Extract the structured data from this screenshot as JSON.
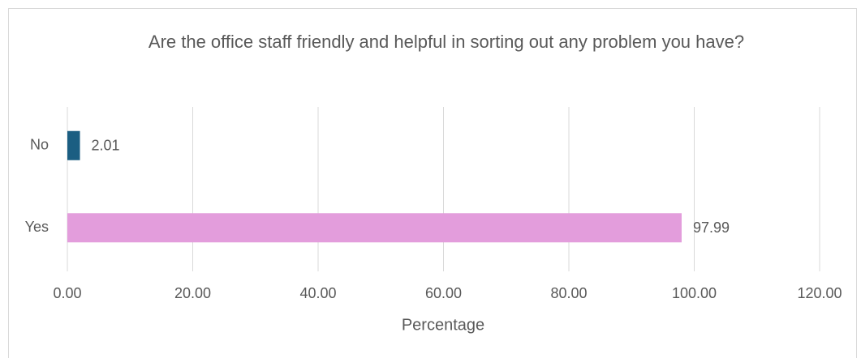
{
  "chart_data": {
    "type": "bar",
    "orientation": "horizontal",
    "title": "Are the office staff friendly and helpful in sorting out any problem you have?",
    "x_label": "Percentage",
    "categories": [
      "No",
      "Yes"
    ],
    "values": [
      2.01,
      97.99
    ],
    "colors": [
      "#1b5e82",
      "#e39ddc"
    ],
    "xlim": [
      0,
      120
    ],
    "xticks": [
      {
        "value": 0,
        "label": "0.00"
      },
      {
        "value": 20,
        "label": "20.00"
      },
      {
        "value": 40,
        "label": "40.00"
      },
      {
        "value": 60,
        "label": "60.00"
      },
      {
        "value": 80,
        "label": "80.00"
      },
      {
        "value": 100,
        "label": "100.00"
      },
      {
        "value": 120,
        "label": "120.00"
      }
    ],
    "grid": true
  }
}
